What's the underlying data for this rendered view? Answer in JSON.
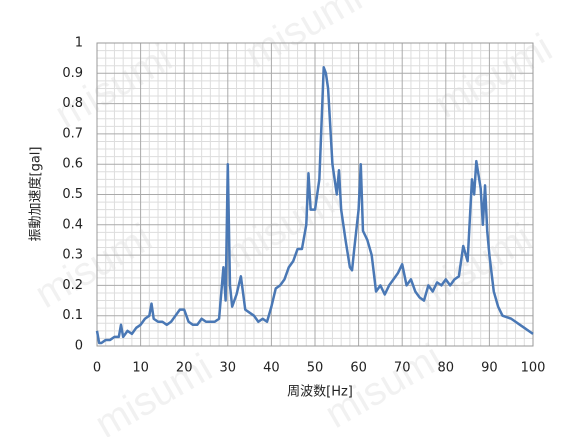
{
  "chart_data": {
    "type": "line",
    "watermark": "misumi",
    "x_label": "周波数[Hz]",
    "y_label": "振動加速度[gal]",
    "xlim": [
      0,
      100
    ],
    "ylim": [
      0,
      1
    ],
    "xticks": [
      0,
      10,
      20,
      30,
      40,
      50,
      60,
      70,
      80,
      90,
      100
    ],
    "yticks": [
      0,
      0.1,
      0.2,
      0.3,
      0.4,
      0.5,
      0.6,
      0.7,
      0.8,
      0.9,
      1
    ],
    "grid": true,
    "series": [
      {
        "color": "#4a78b5",
        "x": [
          0,
          0.5,
          1,
          2,
          3,
          4,
          5,
          5.5,
          6,
          7,
          8,
          9,
          10,
          11,
          12,
          12.5,
          13,
          14,
          15,
          16,
          17,
          18,
          19,
          20,
          21,
          22,
          23,
          24,
          25,
          26,
          27,
          28,
          29,
          29.5,
          30,
          30.5,
          31,
          32,
          33,
          34,
          35,
          36,
          37,
          38,
          39,
          40,
          41,
          42,
          43,
          44,
          45,
          46,
          47,
          48,
          48.5,
          49,
          50,
          51,
          52,
          52.5,
          53,
          54,
          55,
          55.5,
          56,
          57,
          58,
          58.5,
          59,
          60,
          60.5,
          61,
          62,
          63,
          64,
          65,
          66,
          67,
          68,
          69,
          70,
          71,
          72,
          73,
          74,
          75,
          76,
          77,
          78,
          79,
          80,
          81,
          82,
          83,
          84,
          85,
          86,
          86.5,
          87,
          88,
          88.5,
          89,
          89.5,
          90,
          91,
          92,
          93,
          95,
          96,
          97,
          98,
          99,
          100
        ],
        "values": [
          0.05,
          0.01,
          0.01,
          0.02,
          0.02,
          0.03,
          0.03,
          0.07,
          0.03,
          0.05,
          0.04,
          0.06,
          0.07,
          0.09,
          0.1,
          0.14,
          0.09,
          0.08,
          0.08,
          0.07,
          0.08,
          0.1,
          0.12,
          0.12,
          0.08,
          0.07,
          0.07,
          0.09,
          0.08,
          0.08,
          0.08,
          0.09,
          0.26,
          0.15,
          0.6,
          0.2,
          0.13,
          0.17,
          0.23,
          0.12,
          0.11,
          0.1,
          0.08,
          0.09,
          0.08,
          0.13,
          0.19,
          0.2,
          0.22,
          0.26,
          0.28,
          0.32,
          0.32,
          0.4,
          0.57,
          0.45,
          0.45,
          0.55,
          0.92,
          0.9,
          0.85,
          0.6,
          0.5,
          0.58,
          0.45,
          0.35,
          0.26,
          0.25,
          0.32,
          0.45,
          0.6,
          0.38,
          0.35,
          0.3,
          0.18,
          0.2,
          0.17,
          0.2,
          0.22,
          0.24,
          0.27,
          0.2,
          0.22,
          0.18,
          0.16,
          0.15,
          0.2,
          0.18,
          0.21,
          0.2,
          0.22,
          0.2,
          0.22,
          0.23,
          0.33,
          0.28,
          0.55,
          0.5,
          0.61,
          0.52,
          0.4,
          0.53,
          0.38,
          0.3,
          0.18,
          0.13,
          0.1,
          0.09,
          0.08,
          0.07,
          0.06,
          0.05,
          0.04
        ]
      }
    ]
  }
}
